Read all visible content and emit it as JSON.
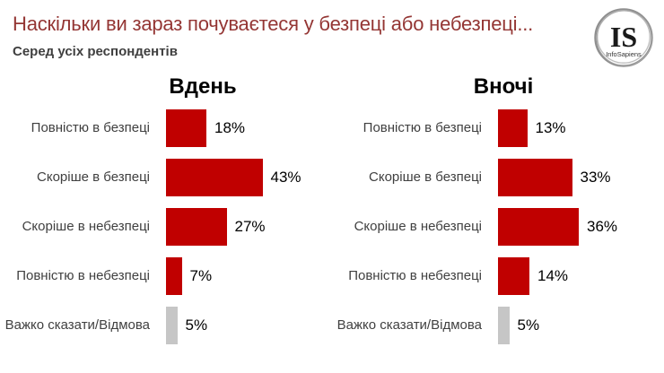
{
  "header": {
    "title": "Наскільки ви зараз почуваєтеся у безпеці або небезпеці...",
    "subtitle": "Серед усіх респондентів",
    "title_color": "#943634",
    "subtitle_color": "#3F3F3F"
  },
  "logo": {
    "initials": "IS",
    "name": "InfoSapiens"
  },
  "chart_data": {
    "type": "bar",
    "orientation": "horizontal",
    "title": "Наскільки ви зараз почуваєтеся у безпеці або небезпеці...",
    "subtitle": "Серед усіх респондентів",
    "categories": [
      "Повністю в безпеці",
      "Скоріше в безпеці",
      "Скоріше в небезпеці",
      "Повністю в небезпеці",
      "Важко сказати/Відмова"
    ],
    "series": [
      {
        "name": "Вдень",
        "values": [
          18,
          43,
          27,
          7,
          5
        ]
      },
      {
        "name": "Вночі",
        "values": [
          13,
          33,
          36,
          14,
          5
        ]
      }
    ],
    "value_suffix": "%",
    "data_labels": true,
    "grid": false,
    "axis_visible": false,
    "xlim": [
      0,
      50
    ],
    "bar_color": "#C00000",
    "neutral_color": "#C6C6C6",
    "neutral_category_index": 4,
    "legend_position": "none"
  }
}
